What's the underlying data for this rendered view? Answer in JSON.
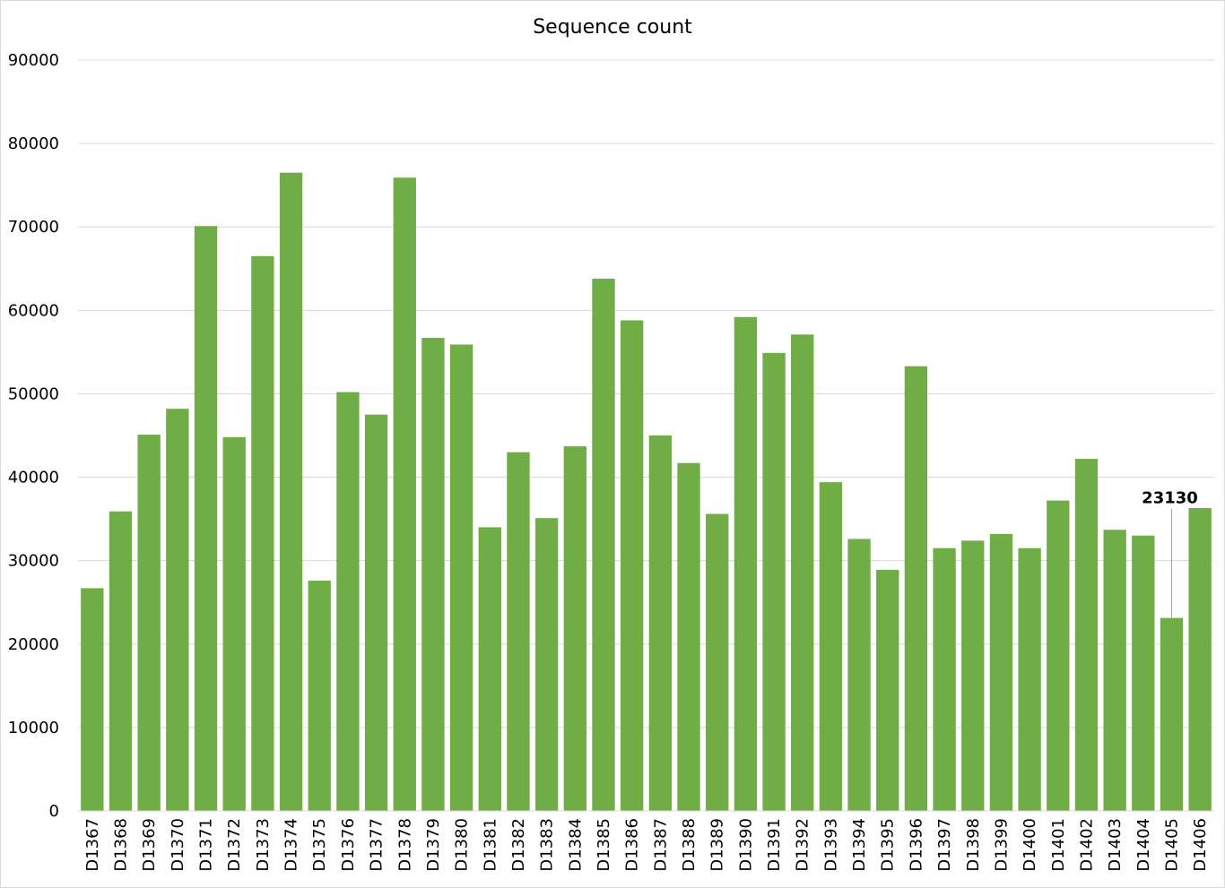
{
  "chart_data": {
    "type": "bar",
    "title": "Sequence count",
    "xlabel": "",
    "ylabel": "",
    "ylim": [
      0,
      90000
    ],
    "yticks": [
      0,
      10000,
      20000,
      30000,
      40000,
      50000,
      60000,
      70000,
      80000,
      90000
    ],
    "grid": true,
    "legend": "none",
    "bar_color": "#70AD47",
    "categories": [
      "D1367",
      "D1368",
      "D1369",
      "D1370",
      "D1371",
      "D1372",
      "D1373",
      "D1374",
      "D1375",
      "D1376",
      "D1377",
      "D1378",
      "D1379",
      "D1380",
      "D1381",
      "D1382",
      "D1383",
      "D1384",
      "D1385",
      "D1386",
      "D1387",
      "D1388",
      "D1389",
      "D1390",
      "D1391",
      "D1392",
      "D1393",
      "D1394",
      "D1395",
      "D1396",
      "D1397",
      "D1398",
      "D1399",
      "D1400",
      "D1401",
      "D1402",
      "D1403",
      "D1404",
      "D1405",
      "D1406"
    ],
    "values": [
      26700,
      35900,
      45100,
      48200,
      70100,
      44800,
      66500,
      76500,
      27600,
      50200,
      47500,
      75900,
      56700,
      55900,
      34000,
      43000,
      35100,
      43700,
      63800,
      58800,
      45000,
      41700,
      35600,
      59200,
      54900,
      57100,
      39400,
      32600,
      28900,
      53300,
      31500,
      32400,
      33200,
      31500,
      37200,
      42200,
      33700,
      33000,
      23130,
      36300
    ],
    "annotations": [
      {
        "category": "D1405",
        "label": "23130"
      }
    ]
  }
}
